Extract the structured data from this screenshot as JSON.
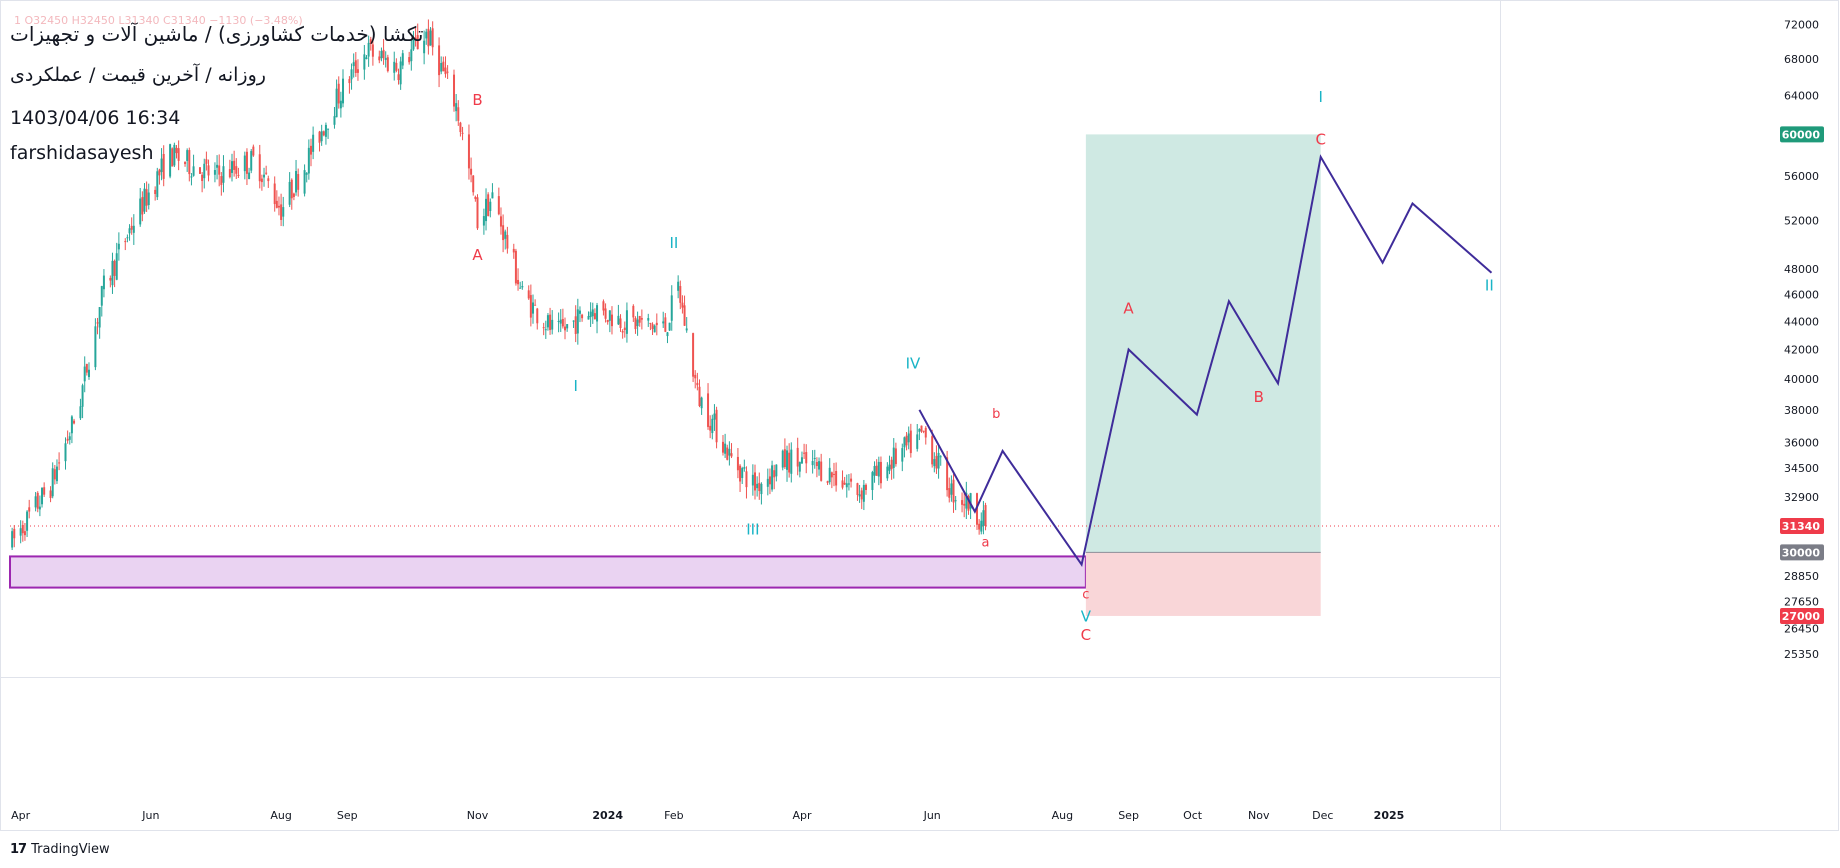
{
  "header": {
    "symbol_title": "تکشا (خدمات کشاورزی) / ماشین آلات و تجهیزات",
    "timeframe": "روزانه / آخرین قیمت / عملکردی",
    "datetime": "1403/04/06 16:34",
    "author": "farshidasayesh",
    "ohlc_line": "1  O32450  H32450  L31340  C31340  −1130 (−3.48%)"
  },
  "branding": {
    "logo": "17",
    "name": "TradingView"
  },
  "colors": {
    "up": "#26a69a",
    "down": "#ef5350",
    "projection": "#3f2c9a",
    "profit_zone": "#cfe9e3",
    "loss_zone": "#f9d6d8",
    "support_fill": "#ead3f2",
    "support_border": "#9c27b0",
    "wave_label_cyan": "#19b4c6",
    "wave_label_red": "#ef3b4a",
    "last_price": "#ef3b4a",
    "target_badge": "#1f9a7a",
    "stop_badge": "#ef3b4a",
    "entry_badge": "#7b7d87"
  },
  "chart_data": {
    "type": "candlestick",
    "title": "",
    "y_axis": {
      "scale": "log",
      "ticks": [
        72000,
        68000,
        64000,
        60000,
        56000,
        52000,
        48000,
        46000,
        44000,
        42000,
        40000,
        38000,
        36000,
        34500,
        32900,
        31340,
        30000,
        28850,
        27650,
        27000,
        26450,
        25350
      ],
      "plain_ticks": [
        72000,
        68000,
        64000,
        56000,
        52000,
        48000,
        46000,
        44000,
        42000,
        40000,
        38000,
        36000,
        34500,
        32900,
        28850,
        27650,
        26450,
        25350
      ],
      "range": [
        24400,
        73500
      ]
    },
    "x_axis": {
      "labels": [
        {
          "text": "Apr",
          "date": "2023-04-01"
        },
        {
          "text": "Jun",
          "date": "2023-06-01"
        },
        {
          "text": "Aug",
          "date": "2023-08-01"
        },
        {
          "text": "Sep",
          "date": "2023-09-01"
        },
        {
          "text": "Nov",
          "date": "2023-11-01"
        },
        {
          "text": "2024",
          "date": "2024-01-01"
        },
        {
          "text": "Feb",
          "date": "2024-02-01"
        },
        {
          "text": "Apr",
          "date": "2024-04-01"
        },
        {
          "text": "Jun",
          "date": "2024-06-01"
        },
        {
          "text": "Aug",
          "date": "2024-08-01"
        },
        {
          "text": "Sep",
          "date": "2024-09-01"
        },
        {
          "text": "Oct",
          "date": "2024-10-01"
        },
        {
          "text": "Nov",
          "date": "2024-11-01"
        },
        {
          "text": "Dec",
          "date": "2024-12-01"
        },
        {
          "text": "2025",
          "date": "2025-01-01"
        }
      ],
      "range": [
        "2023-03-27",
        "2025-02-22"
      ]
    },
    "price_path": [
      [
        "2023-03-28",
        30500
      ],
      [
        "2023-04-15",
        33500
      ],
      [
        "2023-04-28",
        38000
      ],
      [
        "2023-05-10",
        46500
      ],
      [
        "2023-05-24",
        52000
      ],
      [
        "2023-06-10",
        58000
      ],
      [
        "2023-07-01",
        56000
      ],
      [
        "2023-07-20",
        57500
      ],
      [
        "2023-08-01",
        53000
      ],
      [
        "2023-08-12",
        57000
      ],
      [
        "2023-08-28",
        64000
      ],
      [
        "2023-09-10",
        69000
      ],
      [
        "2023-09-25",
        67000
      ],
      [
        "2023-10-08",
        71000
      ],
      [
        "2023-10-22",
        63000
      ],
      [
        "2023-11-01",
        52000
      ],
      [
        "2023-11-08",
        54000
      ],
      [
        "2023-11-22",
        46000
      ],
      [
        "2023-12-08",
        43000
      ],
      [
        "2023-12-25",
        45000
      ],
      [
        "2024-01-10",
        44000
      ],
      [
        "2024-01-28",
        43500
      ],
      [
        "2024-02-03",
        46500
      ],
      [
        "2024-02-12",
        39000
      ],
      [
        "2024-02-28",
        35000
      ],
      [
        "2024-03-10",
        33500
      ],
      [
        "2024-03-25",
        35000
      ],
      [
        "2024-04-10",
        34500
      ],
      [
        "2024-04-28",
        33200
      ],
      [
        "2024-05-12",
        34800
      ],
      [
        "2024-05-28",
        36500
      ],
      [
        "2024-06-10",
        33200
      ],
      [
        "2024-06-20",
        32400
      ],
      [
        "2024-06-26",
        31340
      ]
    ],
    "last_price": 31340,
    "projection": [
      [
        "2024-05-26",
        38000
      ],
      [
        "2024-06-21",
        32100
      ],
      [
        "2024-07-04",
        35500
      ],
      [
        "2024-08-10",
        29400
      ],
      [
        "2024-09-01",
        42000
      ],
      [
        "2024-10-03",
        37700
      ],
      [
        "2024-10-18",
        45500
      ],
      [
        "2024-11-10",
        39700
      ],
      [
        "2024-11-30",
        57800
      ],
      [
        "2024-12-29",
        48500
      ],
      [
        "2025-01-12",
        53500
      ],
      [
        "2025-02-18",
        47700
      ]
    ],
    "position": {
      "start": "2024-08-12",
      "end": "2024-11-30",
      "entry": 30000,
      "target": 60000,
      "stop": 27000
    },
    "support_zone": {
      "start": "2023-03-27",
      "end": "2024-08-12",
      "top": 29800,
      "bottom": 28300
    },
    "last_price_line": 31340,
    "price_badges": [
      {
        "value": "60000",
        "price": 60000,
        "kind": "target"
      },
      {
        "value": "31340",
        "price": 31340,
        "kind": "last"
      },
      {
        "value": "30000",
        "price": 30000,
        "kind": "entry"
      },
      {
        "value": "27000",
        "price": 27000,
        "kind": "stop"
      }
    ],
    "wave_labels": [
      {
        "text": "B",
        "date": "2023-11-01",
        "price": 63000,
        "color": "red",
        "size": 15
      },
      {
        "text": "A",
        "date": "2023-11-01",
        "price": 48700,
        "color": "red",
        "size": 15
      },
      {
        "text": "II",
        "date": "2024-02-01",
        "price": 49700,
        "color": "cyan",
        "size": 15
      },
      {
        "text": "I",
        "date": "2023-12-17",
        "price": 39200,
        "color": "cyan",
        "size": 15
      },
      {
        "text": "III",
        "date": "2024-03-09",
        "price": 30900,
        "color": "cyan",
        "size": 15
      },
      {
        "text": "IV",
        "date": "2024-05-23",
        "price": 40700,
        "color": "cyan",
        "size": 15
      },
      {
        "text": "b",
        "date": "2024-07-01",
        "price": 37500,
        "color": "red",
        "size": 13
      },
      {
        "text": "a",
        "date": "2024-06-26",
        "price": 30300,
        "color": "red",
        "size": 13
      },
      {
        "text": "c",
        "date": "2024-08-12",
        "price": 27800,
        "color": "red",
        "size": 13
      },
      {
        "text": "V",
        "date": "2024-08-12",
        "price": 26750,
        "color": "cyan",
        "size": 15
      },
      {
        "text": "C",
        "date": "2024-08-12",
        "price": 25950,
        "color": "red",
        "size": 15
      },
      {
        "text": "A",
        "date": "2024-09-01",
        "price": 44600,
        "color": "red",
        "size": 15
      },
      {
        "text": "B",
        "date": "2024-11-01",
        "price": 38500,
        "color": "red",
        "size": 15
      },
      {
        "text": "I",
        "date": "2024-11-30",
        "price": 63300,
        "color": "cyan",
        "size": 15
      },
      {
        "text": "C",
        "date": "2024-11-30",
        "price": 59000,
        "color": "red",
        "size": 15
      },
      {
        "text": "II",
        "date": "2025-02-17",
        "price": 46300,
        "color": "cyan",
        "size": 15
      }
    ]
  }
}
